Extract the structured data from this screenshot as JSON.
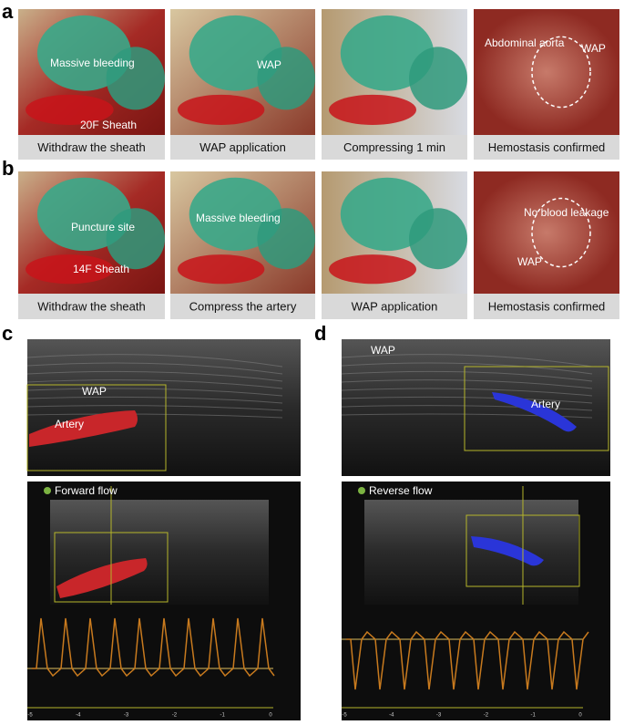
{
  "panels": [
    {
      "label": "a",
      "photos": [
        {
          "caption": "Withdraw the sheath",
          "annotations": [
            "Massive bleeding",
            "20F Sheath"
          ]
        },
        {
          "caption": "WAP application",
          "annotations": [
            "WAP"
          ]
        },
        {
          "caption": "Compressing 1 min",
          "annotations": []
        },
        {
          "caption": "Hemostasis confirmed",
          "annotations": [
            "Abdominal aorta",
            "WAP"
          ]
        }
      ]
    },
    {
      "label": "b",
      "photos": [
        {
          "caption": "Withdraw the sheath",
          "annotations": [
            "Puncture site",
            "14F Sheath"
          ]
        },
        {
          "caption": "Compress the artery",
          "annotations": [
            "Massive bleeding"
          ]
        },
        {
          "caption": "WAP application",
          "annotations": []
        },
        {
          "caption": "Hemostasis confirmed",
          "annotations": [
            "No blood leakage",
            "WAP"
          ]
        }
      ]
    }
  ],
  "ultrasound": [
    {
      "label": "c",
      "top_annotations": [
        "WAP",
        "Artery"
      ],
      "flow": "Forward flow",
      "time_ticks": [
        -5,
        -4,
        -3,
        -2,
        -1,
        0
      ]
    },
    {
      "label": "d",
      "top_annotations": [
        "WAP",
        "Artery"
      ],
      "flow": "Reverse flow",
      "time_ticks": [
        -5,
        -4,
        -3,
        -2,
        -1,
        0
      ]
    }
  ]
}
